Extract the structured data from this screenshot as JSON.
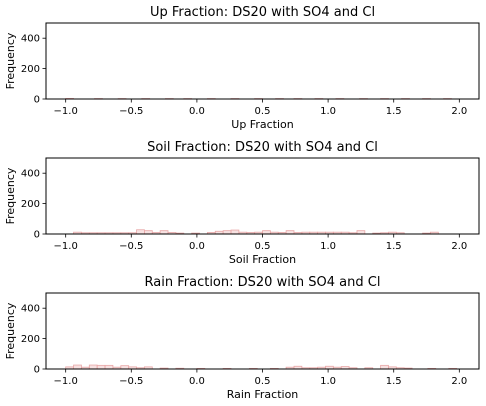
{
  "chart_data": [
    {
      "type": "bar",
      "title": "Up Fraction: DS20 with SO4 and Cl",
      "xlabel": "Up Fraction",
      "ylabel": "Frequency",
      "xlim": [
        -1.15,
        2.15
      ],
      "ylim": [
        0,
        500
      ],
      "xticks": [
        -1.0,
        -0.5,
        0.0,
        0.5,
        1.0,
        1.5,
        2.0
      ],
      "xtick_labels": [
        "−1.0",
        "−0.5",
        "0.0",
        "0.5",
        "1.0",
        "1.5",
        "2.0"
      ],
      "yticks": [
        0,
        200,
        400
      ],
      "ytick_labels": [
        "0",
        "200",
        "400"
      ],
      "grid": false,
      "bin_width": 0.06,
      "bins": [
        {
          "x0": -1.0,
          "count": 4
        },
        {
          "x0": -0.78,
          "count": 3
        },
        {
          "x0": -0.6,
          "count": 3
        },
        {
          "x0": -0.42,
          "count": 3
        },
        {
          "x0": -0.24,
          "count": 3
        },
        {
          "x0": -0.1,
          "count": 3
        },
        {
          "x0": 0.08,
          "count": 3
        },
        {
          "x0": 0.26,
          "count": 3
        },
        {
          "x0": 0.44,
          "count": 3
        },
        {
          "x0": 0.6,
          "count": 3
        },
        {
          "x0": 0.74,
          "count": 3
        },
        {
          "x0": 0.9,
          "count": 3
        },
        {
          "x0": 1.06,
          "count": 3
        },
        {
          "x0": 1.24,
          "count": 3
        },
        {
          "x0": 1.4,
          "count": 3
        },
        {
          "x0": 1.56,
          "count": 3
        },
        {
          "x0": 1.72,
          "count": 3
        },
        {
          "x0": 1.88,
          "count": 3
        }
      ],
      "bar_color": "#e8a8a8"
    },
    {
      "type": "bar",
      "title": "Soil Fraction: DS20 with SO4 and Cl",
      "xlabel": "Soil Fraction",
      "ylabel": "Frequency",
      "xlim": [
        -1.15,
        2.15
      ],
      "ylim": [
        0,
        500
      ],
      "xticks": [
        -1.0,
        -0.5,
        0.0,
        0.5,
        1.0,
        1.5,
        2.0
      ],
      "xtick_labels": [
        "−1.0",
        "−0.5",
        "0.0",
        "0.5",
        "1.0",
        "1.5",
        "2.0"
      ],
      "yticks": [
        0,
        200,
        400
      ],
      "ytick_labels": [
        "0",
        "200",
        "400"
      ],
      "grid": false,
      "bin_width": 0.06,
      "bins": [
        {
          "x0": -0.94,
          "count": 12
        },
        {
          "x0": -0.88,
          "count": 8
        },
        {
          "x0": -0.82,
          "count": 8
        },
        {
          "x0": -0.76,
          "count": 8
        },
        {
          "x0": -0.7,
          "count": 8
        },
        {
          "x0": -0.64,
          "count": 8
        },
        {
          "x0": -0.58,
          "count": 8
        },
        {
          "x0": -0.52,
          "count": 8
        },
        {
          "x0": -0.46,
          "count": 28
        },
        {
          "x0": -0.4,
          "count": 22
        },
        {
          "x0": -0.34,
          "count": 10
        },
        {
          "x0": -0.28,
          "count": 22
        },
        {
          "x0": -0.22,
          "count": 10
        },
        {
          "x0": -0.16,
          "count": 6
        },
        {
          "x0": -0.04,
          "count": 6
        },
        {
          "x0": 0.08,
          "count": 10
        },
        {
          "x0": 0.14,
          "count": 18
        },
        {
          "x0": 0.2,
          "count": 22
        },
        {
          "x0": 0.26,
          "count": 26
        },
        {
          "x0": 0.32,
          "count": 12
        },
        {
          "x0": 0.38,
          "count": 10
        },
        {
          "x0": 0.44,
          "count": 12
        },
        {
          "x0": 0.5,
          "count": 22
        },
        {
          "x0": 0.56,
          "count": 12
        },
        {
          "x0": 0.62,
          "count": 10
        },
        {
          "x0": 0.68,
          "count": 22
        },
        {
          "x0": 0.74,
          "count": 10
        },
        {
          "x0": 0.8,
          "count": 12
        },
        {
          "x0": 0.86,
          "count": 12
        },
        {
          "x0": 0.92,
          "count": 12
        },
        {
          "x0": 0.98,
          "count": 12
        },
        {
          "x0": 1.04,
          "count": 12
        },
        {
          "x0": 1.1,
          "count": 12
        },
        {
          "x0": 1.16,
          "count": 8
        },
        {
          "x0": 1.22,
          "count": 22
        },
        {
          "x0": 1.34,
          "count": 6
        },
        {
          "x0": 1.4,
          "count": 8
        },
        {
          "x0": 1.46,
          "count": 12
        },
        {
          "x0": 1.52,
          "count": 8
        },
        {
          "x0": 1.72,
          "count": 6
        },
        {
          "x0": 1.78,
          "count": 12
        }
      ],
      "bar_color": "#e8a8a8"
    },
    {
      "type": "bar",
      "title": "Rain Fraction: DS20 with SO4 and Cl",
      "xlabel": "Rain Fraction",
      "ylabel": "Frequency",
      "xlim": [
        -1.15,
        2.15
      ],
      "ylim": [
        0,
        500
      ],
      "xticks": [
        -1.0,
        -0.5,
        0.0,
        0.5,
        1.0,
        1.5,
        2.0
      ],
      "xtick_labels": [
        "−1.0",
        "−0.5",
        "0.0",
        "0.5",
        "1.0",
        "1.5",
        "2.0"
      ],
      "yticks": [
        0,
        200,
        400
      ],
      "ytick_labels": [
        "0",
        "200",
        "400"
      ],
      "grid": false,
      "bin_width": 0.06,
      "bins": [
        {
          "x0": -1.0,
          "count": 14
        },
        {
          "x0": -0.94,
          "count": 26
        },
        {
          "x0": -0.88,
          "count": 12
        },
        {
          "x0": -0.82,
          "count": 26
        },
        {
          "x0": -0.76,
          "count": 24
        },
        {
          "x0": -0.7,
          "count": 24
        },
        {
          "x0": -0.64,
          "count": 12
        },
        {
          "x0": -0.58,
          "count": 22
        },
        {
          "x0": -0.52,
          "count": 14
        },
        {
          "x0": -0.46,
          "count": 8
        },
        {
          "x0": -0.4,
          "count": 14
        },
        {
          "x0": -0.28,
          "count": 6
        },
        {
          "x0": -0.16,
          "count": 5
        },
        {
          "x0": 0.0,
          "count": 4
        },
        {
          "x0": 0.2,
          "count": 4
        },
        {
          "x0": 0.4,
          "count": 4
        },
        {
          "x0": 0.56,
          "count": 4
        },
        {
          "x0": 0.68,
          "count": 12
        },
        {
          "x0": 0.74,
          "count": 18
        },
        {
          "x0": 0.8,
          "count": 8
        },
        {
          "x0": 0.86,
          "count": 8
        },
        {
          "x0": 0.92,
          "count": 12
        },
        {
          "x0": 0.98,
          "count": 18
        },
        {
          "x0": 1.04,
          "count": 12
        },
        {
          "x0": 1.1,
          "count": 16
        },
        {
          "x0": 1.16,
          "count": 8
        },
        {
          "x0": 1.28,
          "count": 8
        },
        {
          "x0": 1.4,
          "count": 24
        },
        {
          "x0": 1.46,
          "count": 14
        },
        {
          "x0": 1.52,
          "count": 8
        },
        {
          "x0": 1.58,
          "count": 6
        },
        {
          "x0": 1.76,
          "count": 4
        },
        {
          "x0": 1.92,
          "count": 4
        }
      ],
      "bar_color": "#e8a8a8"
    }
  ]
}
